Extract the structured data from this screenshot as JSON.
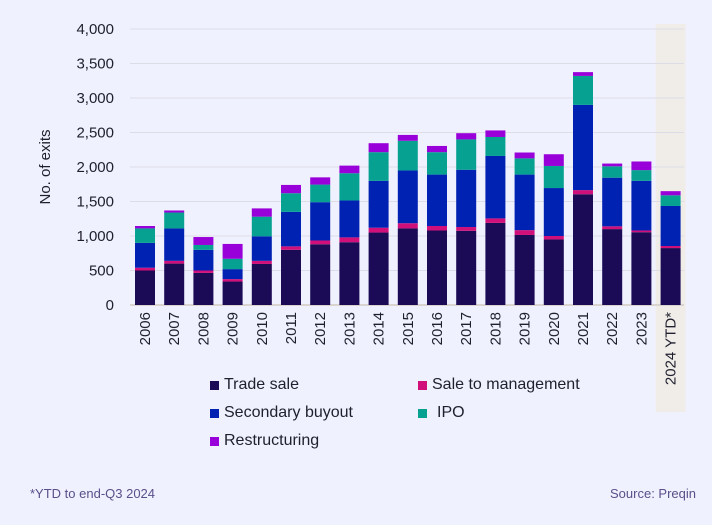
{
  "chart_data": {
    "type": "bar",
    "stacked": true,
    "title": "",
    "xlabel": "",
    "ylabel": "No. of exits",
    "ylim": [
      0,
      4000
    ],
    "yticks": [
      0,
      500,
      1000,
      1500,
      2000,
      2500,
      3000,
      3500,
      4000
    ],
    "ytick_labels": [
      "0",
      "500",
      "1,000",
      "1,500",
      "2,000",
      "2,500",
      "3,000",
      "3,500",
      "4,000"
    ],
    "grid": true,
    "legend_position": "bottom",
    "highlighted_category": "2024 YTD*",
    "categories": [
      "2006",
      "2007",
      "2008",
      "2009",
      "2010",
      "2011",
      "2012",
      "2013",
      "2014",
      "2015",
      "2016",
      "2017",
      "2018",
      "2019",
      "2020",
      "2021",
      "2022",
      "2023",
      "2024 YTD*"
    ],
    "series": [
      {
        "name": "Trade sale",
        "color": "#1b0a55",
        "values": [
          500,
          600,
          465,
          340,
          595,
          800,
          880,
          910,
          1050,
          1110,
          1080,
          1075,
          1190,
          1015,
          950,
          1605,
          1100,
          1055,
          825
        ]
      },
      {
        "name": "Sale to management",
        "color": "#d10f7a",
        "values": [
          40,
          40,
          35,
          35,
          45,
          50,
          55,
          70,
          70,
          75,
          65,
          55,
          65,
          70,
          50,
          60,
          40,
          25,
          30
        ]
      },
      {
        "name": "Secondary buyout",
        "color": "#0022b2",
        "values": [
          360,
          470,
          300,
          145,
          355,
          500,
          555,
          535,
          680,
          765,
          745,
          830,
          905,
          805,
          695,
          1235,
          705,
          720,
          580
        ]
      },
      {
        "name": "IPO",
        "color": "#07a192",
        "values": [
          210,
          230,
          70,
          150,
          285,
          270,
          255,
          395,
          415,
          430,
          325,
          440,
          275,
          235,
          320,
          420,
          165,
          155,
          155
        ]
      },
      {
        "name": "Restructuring",
        "color": "#9900d9",
        "values": [
          35,
          30,
          115,
          215,
          120,
          120,
          105,
          110,
          130,
          85,
          90,
          90,
          95,
          85,
          170,
          55,
          40,
          125,
          60
        ]
      }
    ]
  },
  "legend": {
    "items": [
      {
        "label": "Trade sale",
        "color": "#1b0a55"
      },
      {
        "label": "Sale to management",
        "color": "#d10f7a"
      },
      {
        "label": "Secondary buyout",
        "color": "#0022b2"
      },
      {
        "label": "IPO",
        "color": "#07a192"
      },
      {
        "label": "Restructuring",
        "color": "#9900d9"
      }
    ]
  },
  "footnote": "*YTD to end-Q3 2024",
  "source": "Source: Preqin"
}
